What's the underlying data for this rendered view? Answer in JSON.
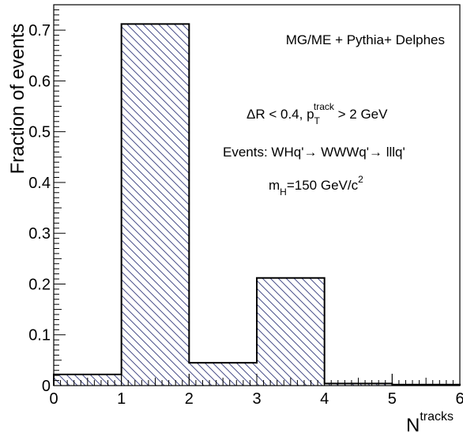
{
  "chart_data": {
    "type": "bar",
    "style": "histogram",
    "bins": [
      {
        "low": 0,
        "high": 1,
        "value": 0.022
      },
      {
        "low": 1,
        "high": 2,
        "value": 0.712
      },
      {
        "low": 2,
        "high": 3,
        "value": 0.045
      },
      {
        "low": 3,
        "high": 4,
        "value": 0.212
      },
      {
        "low": 4,
        "high": 5,
        "value": 0.004
      },
      {
        "low": 5,
        "high": 6,
        "value": 0.002
      }
    ],
    "xlim": [
      0,
      6
    ],
    "ylim": [
      0,
      0.75
    ],
    "xticks": [
      "0",
      "1",
      "2",
      "3",
      "4",
      "5",
      "6"
    ],
    "yticks": [
      "0",
      "0.1",
      "0.2",
      "0.3",
      "0.4",
      "0.5",
      "0.6",
      "0.7"
    ],
    "xlabel_main": "N",
    "xlabel_sup": "tracks",
    "ylabel": "Fraction of events",
    "fill": "hatched",
    "hatch_color": "#4a4f8a",
    "line_color": "#000000",
    "annotations": {
      "generator": "MG/ME + Pythia+ Delphes",
      "cut_part1": "ΔR < 0.4, p",
      "cut_sub": "T",
      "cut_sup": "track",
      "cut_part2": " > 2 GeV",
      "events": "Events: WHq'→ WWWq'→ lllq'",
      "mass_part1": "m",
      "mass_sub": "H",
      "mass_part2": "=150 GeV/c",
      "mass_sup": "2"
    }
  }
}
